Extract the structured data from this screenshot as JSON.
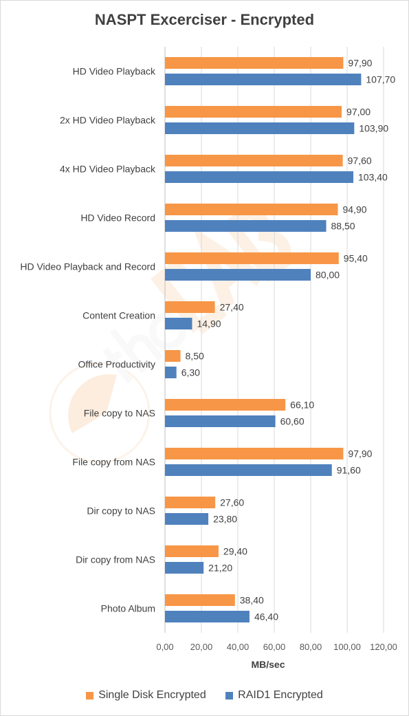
{
  "chart_data": {
    "type": "bar",
    "orientation": "horizontal",
    "title": "NASPT Excerciser - Encrypted",
    "xlabel": "MB/sec",
    "ylabel": "",
    "xlim": [
      0,
      120
    ],
    "ticks": [
      "0,00",
      "20,00",
      "40,00",
      "60,00",
      "80,00",
      "100,00",
      "120,00"
    ],
    "gridlines": true,
    "legend_position": "bottom",
    "categories": [
      "HD Video Playback",
      "2x HD Video Playback",
      "4x HD Video Playback",
      "HD Video Record",
      "HD Video Playback and Record",
      "Content Creation",
      "Office Productivity",
      "File copy to NAS",
      "File copy from NAS",
      "Dir copy to NAS",
      "Dir copy from NAS",
      "Photo Album"
    ],
    "series": [
      {
        "name": "Single Disk Encrypted",
        "color": "#f79646",
        "values": [
          97.9,
          97.0,
          97.6,
          94.9,
          95.4,
          27.4,
          8.5,
          66.1,
          97.9,
          27.6,
          29.4,
          38.4
        ],
        "labels": [
          "97,90",
          "97,00",
          "97,60",
          "94,90",
          "95,40",
          "27,40",
          "8,50",
          "66,10",
          "97,90",
          "27,60",
          "29,40",
          "38,40"
        ]
      },
      {
        "name": "RAID1 Encrypted",
        "color": "#4f81bd",
        "values": [
          107.7,
          103.9,
          103.4,
          88.5,
          80.0,
          14.9,
          6.3,
          60.6,
          91.6,
          23.8,
          21.2,
          46.4
        ],
        "labels": [
          "107,70",
          "103,90",
          "103,40",
          "88,50",
          "80,00",
          "14,90",
          "6,30",
          "60,60",
          "91,60",
          "23,80",
          "21,20",
          "46,40"
        ]
      }
    ]
  },
  "watermark": {
    "logo_text": "theLAB.GR"
  }
}
